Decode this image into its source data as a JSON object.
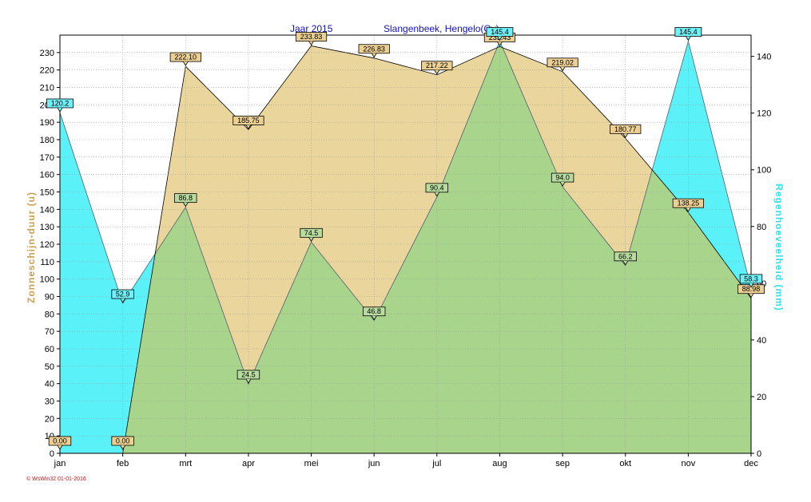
{
  "chart_data": {
    "type": "area",
    "title_left": "Jaar  2015",
    "title_right": "Slangenbeek, Hengelo(Ov)",
    "categories": [
      "jan",
      "feb",
      "mrt",
      "apr",
      "mei",
      "jun",
      "jul",
      "aug",
      "sep",
      "okt",
      "nov",
      "dec"
    ],
    "ylabel_left": "Zonneschijn-duur  (u)",
    "ylabel_right": "Regenhoeveelheid   (mm)",
    "ylim_left": [
      0,
      240
    ],
    "ylim_right": [
      0,
      147.5
    ],
    "yticks_left": [
      0,
      10,
      20,
      30,
      40,
      50,
      60,
      70,
      80,
      90,
      100,
      110,
      120,
      130,
      140,
      150,
      160,
      170,
      180,
      190,
      200,
      210,
      220,
      230
    ],
    "yticks_right": [
      0,
      20,
      40,
      60,
      80,
      100,
      120,
      140
    ],
    "grid": true,
    "series": [
      {
        "axis": "left",
        "color": "#e8d294",
        "label_bg": "#eccf93",
        "values": [
          0.0,
          0.0,
          222.1,
          185.75,
          233.83,
          226.83,
          217.22,
          233.43,
          219.02,
          180.77,
          138.25,
          88.98
        ],
        "labels": [
          "0.00",
          "0.00",
          "222.10",
          "185.75",
          "233.83",
          "226.83",
          "217.22",
          "233.43",
          "219.02",
          "180.77",
          "138.25",
          "88.98"
        ]
      },
      {
        "axis": "right",
        "color": "#5af2f8",
        "label_bg": "#70f0f8",
        "values": [
          120.2,
          52.9,
          86.8,
          24.5,
          74.5,
          46.8,
          90.4,
          145.4,
          94.0,
          66.2,
          145.4,
          58.3
        ],
        "labels": [
          "120.2",
          "52.9",
          "86.8",
          "24.5",
          "74.5",
          "46.8",
          "90.4",
          "145.4",
          "94.0",
          "66.2",
          "145.4",
          "58.3"
        ]
      }
    ],
    "footer": "© WsWin32  01-01-2016"
  }
}
